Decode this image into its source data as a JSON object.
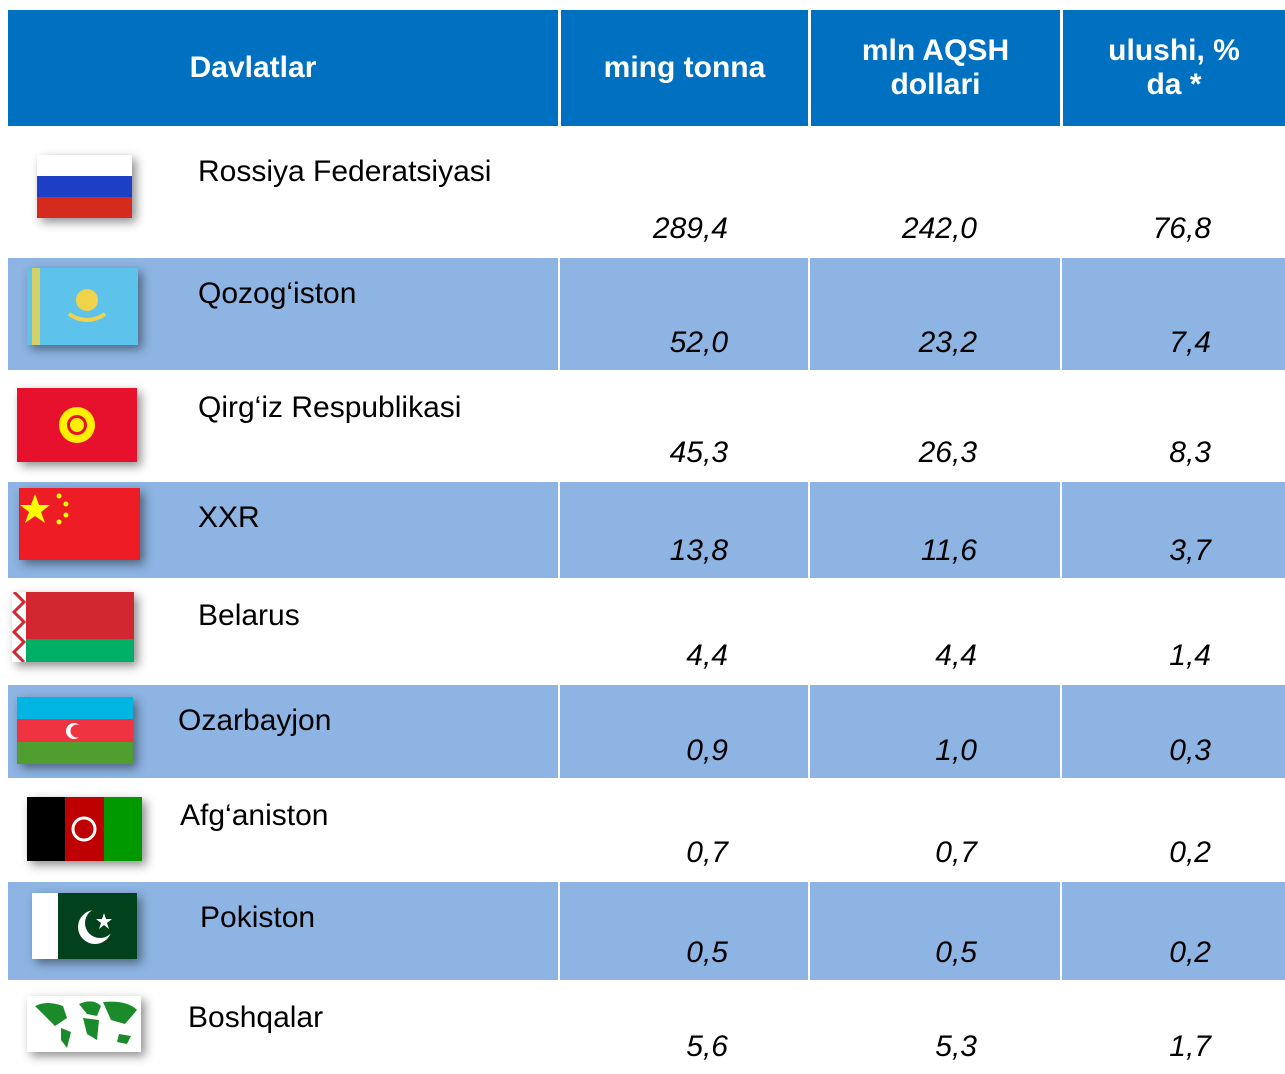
{
  "table": {
    "header": [
      "Davlatlar",
      "ming tonna",
      "mln AQSH dollari",
      "ulushi, % da *"
    ],
    "rows": [
      [
        "Rossiya Federatsiyasi",
        "289,4",
        "242,0",
        "76,8"
      ],
      [
        "Qozog‘iston",
        "52,0",
        "23,2",
        "7,4"
      ],
      [
        "Qirg‘iz Respublikasi",
        "45,3",
        "26,3",
        "8,3"
      ],
      [
        "XXR",
        "13,8",
        "11,6",
        "3,7"
      ],
      [
        "Belarus",
        "4,4",
        "4,4",
        "1,4"
      ],
      [
        "Ozarbayjon",
        "0,9",
        "1,0",
        "0,3"
      ],
      [
        "Afg‘aniston",
        "0,7",
        "0,7",
        "0,2"
      ],
      [
        "Pokiston",
        "0,5",
        "0,5",
        "0,2"
      ],
      [
        "Boshqalar",
        "5,6",
        "5,3",
        "1,7"
      ]
    ]
  }
}
